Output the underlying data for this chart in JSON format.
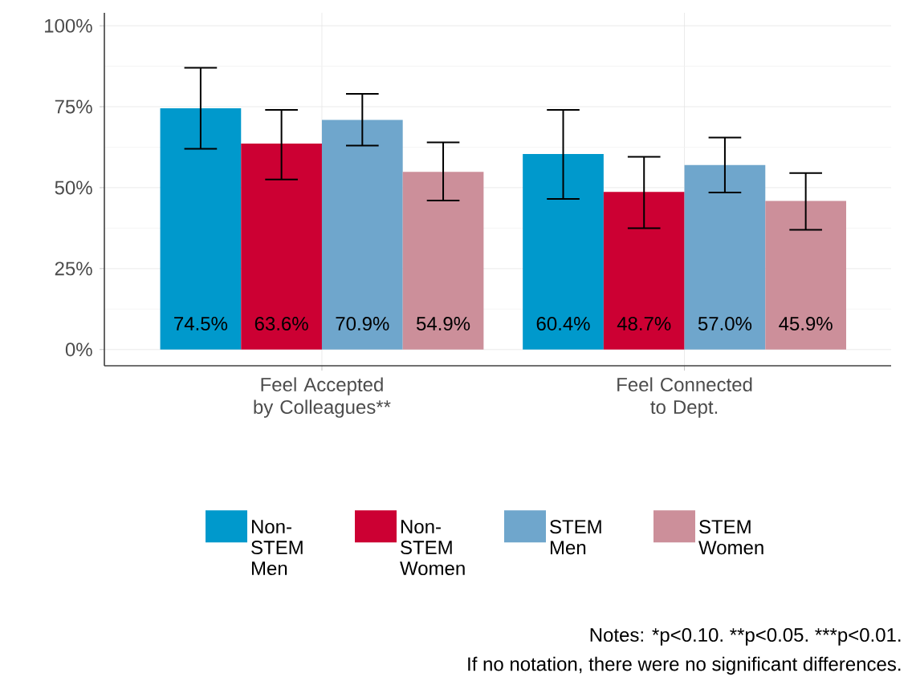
{
  "chart_data": {
    "type": "bar",
    "categories": [
      "Feel Accepted by Colleagues**",
      "Feel Connected to Dept."
    ],
    "series": [
      {
        "name": "Non-STEM Men",
        "color": "#0099cc",
        "values": [
          74.5,
          60.4
        ],
        "errors": [
          [
            62,
            87
          ],
          [
            46.5,
            74
          ]
        ],
        "value_labels": [
          "74.5%",
          "60.4%"
        ]
      },
      {
        "name": "Non-STEM Women",
        "color": "#cc0033",
        "values": [
          63.6,
          48.7
        ],
        "errors": [
          [
            52.5,
            74
          ],
          [
            37.5,
            59.5
          ]
        ],
        "value_labels": [
          "63.6%",
          "48.7%"
        ]
      },
      {
        "name": "STEM Men",
        "color": "#6fa6cc",
        "values": [
          70.9,
          57.0
        ],
        "errors": [
          [
            63,
            79
          ],
          [
            48.5,
            65.5
          ]
        ],
        "value_labels": [
          "70.9%",
          "57.0%"
        ]
      },
      {
        "name": "STEM Women",
        "color": "#cc8f9a",
        "values": [
          54.9,
          45.9
        ],
        "errors": [
          [
            46,
            64
          ],
          [
            37,
            54.5
          ]
        ],
        "value_labels": [
          "54.9%",
          "45.9%"
        ]
      }
    ],
    "ylim": [
      -5,
      104
    ],
    "yticks": [
      {
        "value": 0,
        "label": "0%"
      },
      {
        "value": 25,
        "label": "25%"
      },
      {
        "value": 50,
        "label": "50%"
      },
      {
        "value": 75,
        "label": "75%"
      },
      {
        "value": 100,
        "label": "100%"
      }
    ],
    "grid": true,
    "legend": "bottom",
    "annotations": [
      "Notes: *p<0.10.",
      "**p<0.05.",
      "***p<0.01.",
      "If no notation, there were no significant differences."
    ]
  }
}
